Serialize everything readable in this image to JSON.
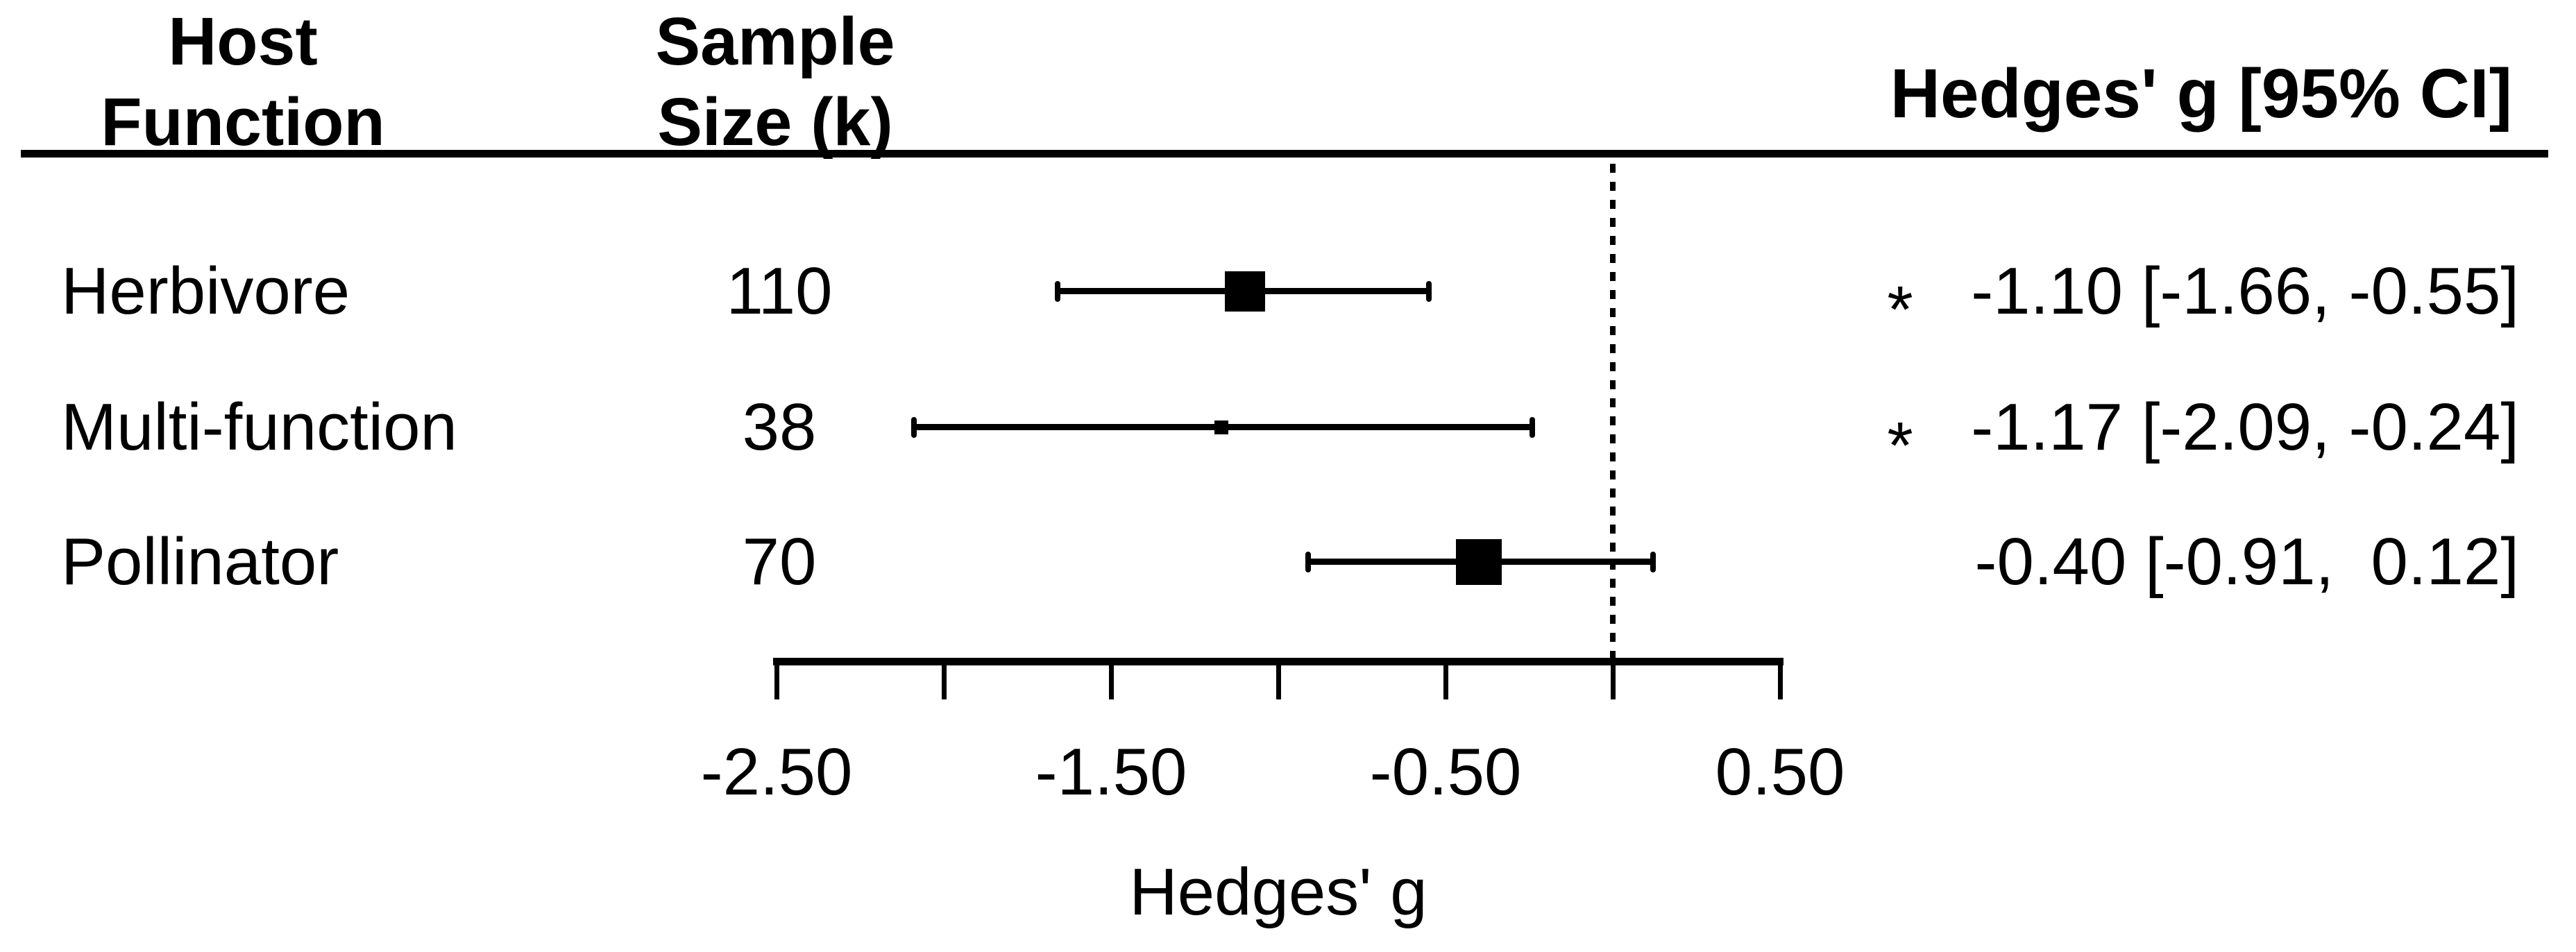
{
  "header": {
    "col_host_function": "Host\nFunction",
    "col_sample_size": "Sample\nSize (k)",
    "col_effect": "Hedges' g [95% CI]"
  },
  "chart_data": {
    "type": "forest",
    "xlabel": "Hedges' g",
    "x_axis": {
      "range": [
        -2.5,
        0.5
      ],
      "ticks": [
        {
          "value": -2.5,
          "label": "-2.50"
        },
        {
          "value": -2.0,
          "label": ""
        },
        {
          "value": -1.5,
          "label": "-1.50"
        },
        {
          "value": -1.0,
          "label": ""
        },
        {
          "value": -0.5,
          "label": "-0.50"
        },
        {
          "value": 0.0,
          "label": ""
        },
        {
          "value": 0.5,
          "label": "0.50"
        }
      ]
    },
    "reference_line_value": 0,
    "rows": [
      {
        "label": "Herbivore",
        "k": "110",
        "g": -1.1,
        "ci_low": -1.66,
        "ci_high": -0.55,
        "significance": "*",
        "estimate_text": "-1.10 [-1.66, -0.55]",
        "marker_px": 58
      },
      {
        "label": "Multi-function",
        "k": "38",
        "g": -1.17,
        "ci_low": -2.09,
        "ci_high": -0.24,
        "significance": "*",
        "estimate_text": "-1.17 [-2.09, -0.24]",
        "marker_px": 20
      },
      {
        "label": "Pollinator",
        "k": "70",
        "g": -0.4,
        "ci_low": -0.91,
        "ci_high": 0.12,
        "significance": "",
        "estimate_text": "-0.40 [-0.91,  0.12]",
        "marker_px": 66
      }
    ],
    "colors": {
      "foreground": "#000000",
      "background": "#ffffff"
    }
  }
}
